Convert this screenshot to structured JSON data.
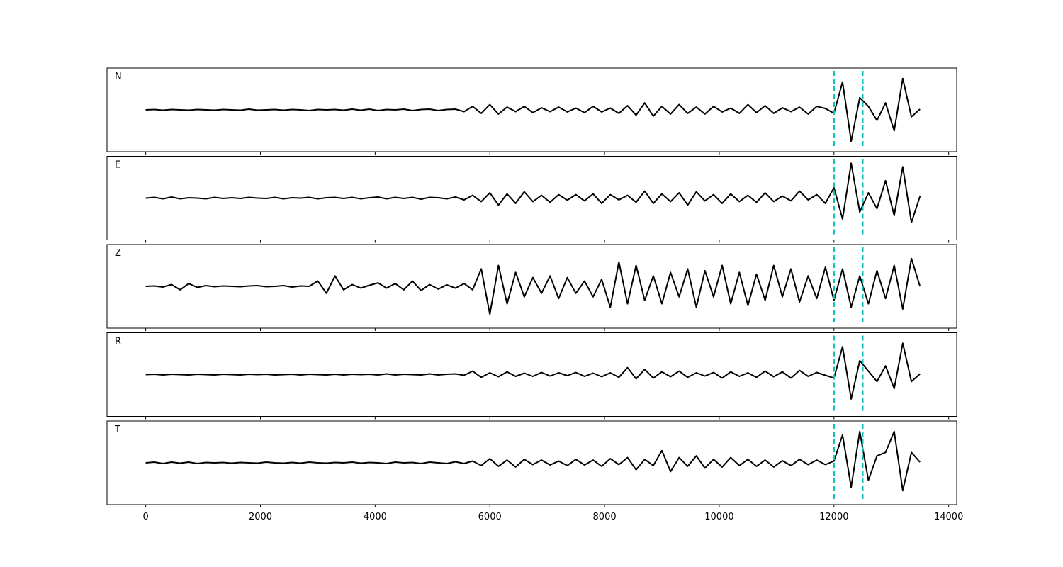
{
  "chart_data": {
    "type": "line",
    "x": [
      0,
      150,
      300,
      450,
      600,
      750,
      900,
      1050,
      1200,
      1350,
      1500,
      1650,
      1800,
      1950,
      2100,
      2250,
      2400,
      2550,
      2700,
      2850,
      3000,
      3150,
      3300,
      3450,
      3600,
      3750,
      3900,
      4050,
      4200,
      4350,
      4500,
      4650,
      4800,
      4950,
      5100,
      5250,
      5400,
      5550,
      5700,
      5850,
      6000,
      6150,
      6300,
      6450,
      6600,
      6750,
      6900,
      7050,
      7200,
      7350,
      7500,
      7650,
      7800,
      7950,
      8100,
      8250,
      8400,
      8550,
      8700,
      8850,
      9000,
      9150,
      9300,
      9450,
      9600,
      9750,
      9900,
      10050,
      10200,
      10350,
      10500,
      10650,
      10800,
      10950,
      11100,
      11250,
      11400,
      11550,
      11700,
      11850,
      12000,
      12150,
      12300,
      12450,
      12600,
      12750,
      12900,
      13050,
      13200,
      13350,
      13500
    ],
    "series": [
      {
        "name": "N",
        "color": "#000000",
        "values": [
          0,
          0.01,
          -0.01,
          0.01,
          0,
          -0.01,
          0.01,
          0,
          -0.01,
          0.01,
          0,
          -0.01,
          0.02,
          -0.01,
          0,
          0.01,
          -0.01,
          0.01,
          0,
          -0.02,
          0.01,
          0,
          0.01,
          -0.01,
          0.02,
          -0.01,
          0.02,
          -0.02,
          0.01,
          0,
          0.02,
          -0.02,
          0.01,
          0.02,
          -0.02,
          0.01,
          0.02,
          -0.05,
          0.1,
          -0.1,
          0.15,
          -0.12,
          0.08,
          -0.05,
          0.1,
          -0.08,
          0.06,
          -0.05,
          0.08,
          -0.06,
          0.05,
          -0.08,
          0.1,
          -0.06,
          0.05,
          -0.1,
          0.12,
          -0.15,
          0.2,
          -0.18,
          0.1,
          -0.12,
          0.15,
          -0.1,
          0.08,
          -0.12,
          0.1,
          -0.06,
          0.05,
          -0.1,
          0.15,
          -0.08,
          0.12,
          -0.1,
          0.06,
          -0.05,
          0.08,
          -0.12,
          0.1,
          0.04,
          -0.1,
          0.8,
          -0.9,
          0.35,
          0.1,
          -0.3,
          0.2,
          -0.6,
          0.9,
          -0.2,
          0.02
        ]
      },
      {
        "name": "E",
        "color": "#000000",
        "values": [
          0,
          0.02,
          -0.02,
          0.03,
          -0.02,
          0.01,
          0,
          -0.02,
          0.02,
          -0.01,
          0.01,
          -0.01,
          0.02,
          0,
          -0.01,
          0.02,
          -0.02,
          0.01,
          0,
          0.02,
          -0.02,
          0.01,
          0.02,
          -0.01,
          0.02,
          -0.02,
          0.01,
          0.03,
          -0.02,
          0.02,
          -0.01,
          0.02,
          -0.03,
          0.02,
          0.01,
          -0.02,
          0.03,
          -0.05,
          0.08,
          -0.1,
          0.15,
          -0.2,
          0.12,
          -0.15,
          0.18,
          -0.1,
          0.08,
          -0.12,
          0.1,
          -0.06,
          0.1,
          -0.08,
          0.12,
          -0.15,
          0.1,
          -0.05,
          0.08,
          -0.12,
          0.2,
          -0.15,
          0.12,
          -0.1,
          0.15,
          -0.2,
          0.18,
          -0.08,
          0.1,
          -0.15,
          0.12,
          -0.1,
          0.08,
          -0.12,
          0.15,
          -0.1,
          0.06,
          -0.08,
          0.2,
          -0.05,
          0.1,
          -0.15,
          0.3,
          -0.6,
          1.0,
          -0.4,
          0.15,
          -0.3,
          0.5,
          -0.5,
          0.9,
          -0.7,
          0.05
        ]
      },
      {
        "name": "Z",
        "color": "#000000",
        "values": [
          0,
          0.01,
          -0.02,
          0.05,
          -0.1,
          0.08,
          -0.03,
          0.02,
          -0.01,
          0.01,
          0,
          -0.01,
          0.01,
          0.02,
          -0.01,
          0,
          0.02,
          -0.02,
          0.01,
          0,
          0.15,
          -0.2,
          0.3,
          -0.1,
          0.05,
          -0.05,
          0.03,
          0.1,
          -0.05,
          0.08,
          -0.1,
          0.15,
          -0.12,
          0.05,
          -0.08,
          0.04,
          -0.05,
          0.08,
          -0.1,
          0.5,
          -0.8,
          0.6,
          -0.5,
          0.4,
          -0.3,
          0.25,
          -0.2,
          0.3,
          -0.35,
          0.25,
          -0.2,
          0.15,
          -0.3,
          0.2,
          -0.6,
          0.7,
          -0.5,
          0.6,
          -0.4,
          0.3,
          -0.5,
          0.4,
          -0.3,
          0.5,
          -0.6,
          0.45,
          -0.3,
          0.6,
          -0.5,
          0.4,
          -0.55,
          0.35,
          -0.4,
          0.6,
          -0.3,
          0.5,
          -0.45,
          0.3,
          -0.35,
          0.55,
          -0.4,
          0.5,
          -0.6,
          0.3,
          -0.5,
          0.45,
          -0.35,
          0.6,
          -0.65,
          0.8,
          0
        ]
      },
      {
        "name": "R",
        "color": "#000000",
        "values": [
          0,
          0.01,
          -0.01,
          0.01,
          0,
          -0.01,
          0.01,
          0,
          -0.01,
          0.01,
          0,
          -0.01,
          0.01,
          0,
          0.01,
          -0.01,
          0,
          0.01,
          -0.01,
          0.01,
          0,
          -0.01,
          0.01,
          -0.01,
          0.01,
          0,
          0.01,
          -0.01,
          0.02,
          -0.01,
          0.01,
          0,
          -0.01,
          0.02,
          -0.01,
          0.01,
          0.02,
          -0.02,
          0.1,
          -0.08,
          0.05,
          -0.06,
          0.08,
          -0.05,
          0.04,
          -0.05,
          0.06,
          -0.04,
          0.05,
          -0.03,
          0.06,
          -0.05,
          0.04,
          -0.06,
          0.05,
          -0.08,
          0.2,
          -0.12,
          0.15,
          -0.1,
          0.08,
          -0.06,
          0.1,
          -0.08,
          0.05,
          -0.04,
          0.06,
          -0.1,
          0.08,
          -0.05,
          0.05,
          -0.08,
          0.1,
          -0.06,
          0.08,
          -0.1,
          0.12,
          -0.05,
          0.06,
          -0.02,
          -0.1,
          0.8,
          -0.7,
          0.4,
          0.1,
          -0.2,
          0.25,
          -0.4,
          0.9,
          -0.2,
          0.02
        ]
      },
      {
        "name": "T",
        "color": "#000000",
        "values": [
          0,
          0.02,
          -0.02,
          0.02,
          -0.01,
          0.02,
          -0.02,
          0.01,
          0,
          0.01,
          -0.01,
          0.01,
          0,
          -0.01,
          0.02,
          0,
          -0.01,
          0.01,
          -0.01,
          0.02,
          0,
          -0.01,
          0.01,
          0,
          0.02,
          -0.01,
          0.01,
          0,
          -0.02,
          0.02,
          0,
          0.01,
          -0.02,
          0.02,
          0,
          -0.02,
          0.03,
          -0.02,
          0.05,
          -0.08,
          0.12,
          -0.1,
          0.08,
          -0.12,
          0.1,
          -0.05,
          0.08,
          -0.06,
          0.05,
          -0.08,
          0.1,
          -0.06,
          0.08,
          -0.1,
          0.12,
          -0.05,
          0.15,
          -0.2,
          0.1,
          -0.08,
          0.35,
          -0.25,
          0.15,
          -0.1,
          0.2,
          -0.15,
          0.1,
          -0.12,
          0.15,
          -0.08,
          0.1,
          -0.1,
          0.08,
          -0.12,
          0.06,
          -0.08,
          0.1,
          -0.05,
          0.08,
          -0.05,
          0.05,
          0.8,
          -0.7,
          0.9,
          -0.5,
          0.2,
          0.3,
          0.9,
          -0.8,
          0.3,
          0.02
        ]
      }
    ],
    "vlines": [
      12000,
      12500
    ],
    "vline_color": "#17bebe",
    "xlim": [
      -675,
      14140
    ],
    "ylim": [
      -1.2,
      1.2
    ],
    "xticks": [
      0,
      2000,
      4000,
      6000,
      8000,
      10000,
      12000,
      14000
    ]
  }
}
